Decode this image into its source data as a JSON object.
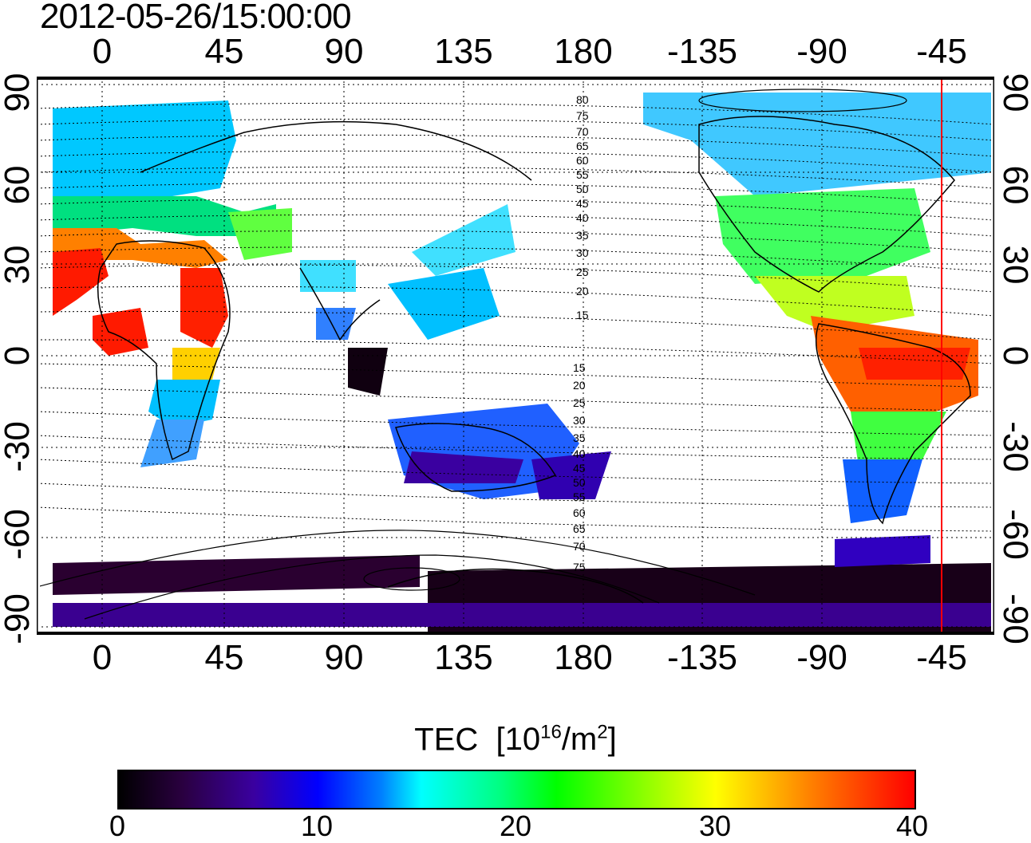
{
  "timestamp": "2012-05-26/15:00:00",
  "map": {
    "lon_ticks_top": [
      "0",
      "45",
      "90",
      "135",
      "180",
      "-135",
      "-90",
      "-45"
    ],
    "lon_ticks_bottom": [
      "0",
      "45",
      "90",
      "135",
      "180",
      "-135",
      "-90",
      "-45"
    ],
    "lat_ticks_left": [
      "90",
      "60",
      "30",
      "0",
      "-30",
      "-60",
      "-90"
    ],
    "lat_ticks_right": [
      "90",
      "60",
      "30",
      "0",
      "-30",
      "-60",
      "-90"
    ],
    "contour_labels": [
      "80",
      "75",
      "70",
      "65",
      "60",
      "55",
      "50",
      "45",
      "40",
      "35",
      "30",
      "25",
      "20",
      "15",
      "15",
      "20",
      "25",
      "30",
      "35",
      "40",
      "45",
      "50",
      "55",
      "60",
      "65",
      "70",
      "75"
    ],
    "terminator_color": "#ff0000",
    "grid": true
  },
  "colorbar": {
    "title": "TEC",
    "unit_prefix": "[10",
    "unit_exp": "16",
    "unit_mid": "/m",
    "unit_exp2": "2",
    "unit_suffix": "]",
    "ticks": [
      "0",
      "10",
      "20",
      "30",
      "40"
    ],
    "range": [
      0,
      40
    ],
    "colors": [
      "#000000",
      "#3a00a0",
      "#0000ff",
      "#00ffff",
      "#00ff00",
      "#ffff00",
      "#ff8000",
      "#ff0000"
    ]
  }
}
